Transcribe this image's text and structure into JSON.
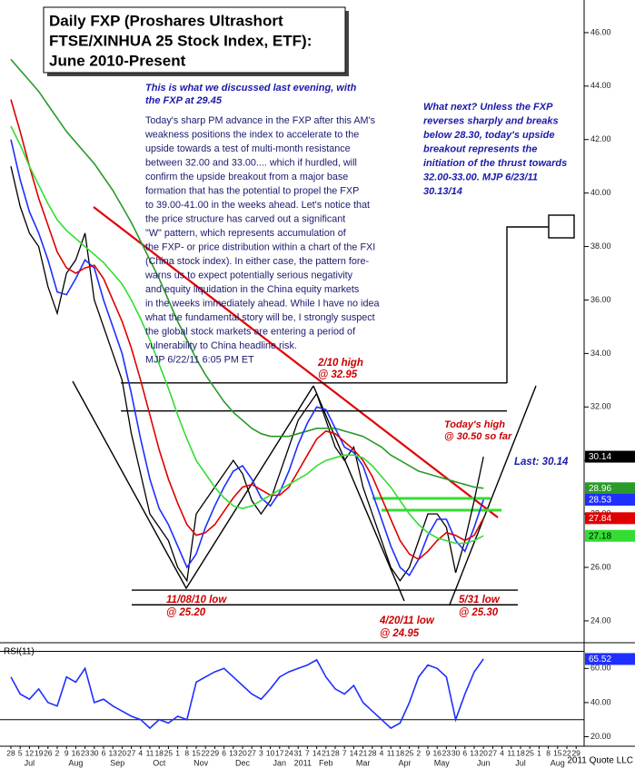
{
  "chart_data": [
    {
      "type": "line",
      "title": [
        "Daily FXP (Proshares Ultrashort",
        "FTSE/XINHUA 25 Stock Index, ETF):",
        "June 2010-Present"
      ],
      "categories": [
        "28",
        "5",
        "12",
        "19",
        "26",
        "2",
        "9",
        "16",
        "23",
        "30",
        "6",
        "13",
        "20",
        "27",
        "4",
        "11",
        "18",
        "25",
        "1",
        "8",
        "15",
        "22",
        "29",
        "6",
        "13",
        "20",
        "27",
        "3",
        "10",
        "17",
        "24",
        "31",
        "7",
        "14",
        "21",
        "28",
        "7",
        "14",
        "21",
        "28",
        "4",
        "11",
        "18",
        "25",
        "2",
        "9",
        "16",
        "23",
        "30",
        "6",
        "13",
        "20",
        "27",
        "4",
        "11",
        "18",
        "25",
        "1",
        "8",
        "15",
        "22",
        "29"
      ],
      "x_groups": [
        "Jul",
        "Aug",
        "Sep",
        "Oct",
        "Nov",
        "Dec",
        "Jan",
        "2011",
        "Feb",
        "Mar",
        "Apr",
        "May",
        "Jun",
        "Jul",
        "Aug"
      ],
      "ylim": [
        23.25,
        47.22
      ],
      "yticks": [
        {
          "value": 24,
          "label": "24.00"
        },
        {
          "value": 26,
          "label": "26.00"
        },
        {
          "value": 28,
          "label": "28.00"
        },
        {
          "value": 30,
          "label": "30.00"
        },
        {
          "value": 32,
          "label": "32.00"
        },
        {
          "value": 34,
          "label": "34.00"
        },
        {
          "value": 36,
          "label": "36.00"
        },
        {
          "value": 38,
          "label": "38.00"
        },
        {
          "value": 40,
          "label": "40.00"
        },
        {
          "value": 42,
          "label": "42.00"
        },
        {
          "value": 44,
          "label": "44.00"
        },
        {
          "value": 46,
          "label": "46.00"
        }
      ],
      "series": [
        {
          "color": "#000000",
          "values": [
            41.0,
            39.5,
            38.5,
            38.0,
            36.5,
            35.5,
            37.0,
            37.5,
            38.5,
            36.0,
            35.0,
            34.0,
            33.0,
            31.0,
            29.5,
            28.0,
            27.5,
            27.0,
            26.0,
            25.5,
            28.0,
            28.5,
            29.0,
            29.5,
            30.0,
            29.5,
            28.5,
            28.0,
            28.5,
            29.5,
            30.5,
            31.5,
            32.0,
            32.5,
            31.5,
            30.5,
            30.0,
            30.5,
            29.0,
            28.0,
            27.0,
            26.0,
            25.5,
            26.0,
            27.0,
            28.0,
            28.0,
            27.5,
            25.8,
            27.0,
            28.5,
            30.14,
            null,
            null,
            null,
            null,
            null,
            null,
            null,
            null,
            null,
            null
          ]
        },
        {
          "color": "#2a9a2a",
          "values": [
            45.0,
            44.6,
            44.2,
            43.8,
            43.3,
            42.8,
            42.3,
            41.9,
            41.5,
            41.1,
            40.6,
            40.1,
            39.5,
            38.9,
            38.2,
            37.5,
            36.8,
            36.0,
            35.2,
            34.5,
            33.8,
            33.2,
            32.7,
            32.2,
            31.8,
            31.5,
            31.2,
            31.0,
            30.9,
            30.9,
            30.9,
            31.0,
            31.1,
            31.2,
            31.2,
            31.2,
            31.1,
            31.0,
            30.9,
            30.7,
            30.5,
            30.2,
            30.0,
            29.8,
            29.6,
            29.5,
            29.4,
            29.3,
            29.2,
            29.1,
            29.0,
            28.96,
            null,
            null,
            null,
            null,
            null,
            null,
            null,
            null,
            null,
            null
          ]
        },
        {
          "color": "#1f2fff",
          "values": [
            42.0,
            40.5,
            39.3,
            38.5,
            37.5,
            36.3,
            36.2,
            36.8,
            37.5,
            37.2,
            36.0,
            35.0,
            34.0,
            32.5,
            30.8,
            29.3,
            28.2,
            27.6,
            26.8,
            26.0,
            26.5,
            27.5,
            28.3,
            29.0,
            29.6,
            29.8,
            29.3,
            28.6,
            28.3,
            28.8,
            29.6,
            30.6,
            31.4,
            32.0,
            31.9,
            31.2,
            30.5,
            30.3,
            29.8,
            28.8,
            27.8,
            26.8,
            26.0,
            25.7,
            26.3,
            27.2,
            27.8,
            27.8,
            27.0,
            26.6,
            27.5,
            28.53,
            null,
            null,
            null,
            null,
            null,
            null,
            null,
            null,
            null,
            null
          ]
        },
        {
          "color": "#e00000",
          "values": [
            43.5,
            42.3,
            41.0,
            39.8,
            38.8,
            37.8,
            37.2,
            37.0,
            37.2,
            37.3,
            36.8,
            36.0,
            35.2,
            34.2,
            33.0,
            31.7,
            30.4,
            29.3,
            28.4,
            27.6,
            27.2,
            27.3,
            27.6,
            28.1,
            28.6,
            29.0,
            29.1,
            28.9,
            28.7,
            28.7,
            29.0,
            29.6,
            30.2,
            30.8,
            31.1,
            31.0,
            30.7,
            30.4,
            30.0,
            29.4,
            28.6,
            27.8,
            27.0,
            26.5,
            26.3,
            26.6,
            27.0,
            27.3,
            27.2,
            27.0,
            27.2,
            27.84,
            null,
            null,
            null,
            null,
            null,
            null,
            null,
            null,
            null,
            null
          ]
        },
        {
          "color": "#33dd33",
          "values": [
            42.5,
            41.8,
            41.0,
            40.3,
            39.6,
            39.0,
            38.6,
            38.3,
            38.0,
            37.7,
            37.4,
            37.0,
            36.6,
            36.0,
            35.3,
            34.5,
            33.6,
            32.7,
            31.7,
            30.8,
            30.0,
            29.5,
            29.0,
            28.6,
            28.3,
            28.2,
            28.3,
            28.5,
            28.7,
            28.9,
            29.1,
            29.3,
            29.5,
            29.8,
            30.0,
            30.1,
            30.2,
            30.2,
            30.1,
            29.8,
            29.4,
            29.0,
            28.5,
            28.0,
            27.6,
            27.3,
            27.1,
            27.0,
            26.9,
            26.9,
            27.0,
            27.18,
            null,
            null,
            null,
            null,
            null,
            null,
            null,
            null,
            null,
            null
          ]
        }
      ],
      "levels": [
        32.9,
        31.85,
        25.15,
        24.6
      ],
      "annotations": [
        {
          "color": "#cc0000",
          "lines": [
            "2/10 high",
            "@ 32.95"
          ]
        },
        {
          "color": "#cc0000",
          "lines": [
            "Today's high",
            "@ 30.50 so far"
          ]
        },
        {
          "color": "#1a1aaa",
          "lines": [
            "Last: 30.14"
          ]
        },
        {
          "color": "#cc0000",
          "lines": [
            "11/08/10 low",
            "@ 25.20"
          ]
        },
        {
          "color": "#cc0000",
          "lines": [
            "4/20/11 low",
            "@ 24.95"
          ]
        },
        {
          "color": "#cc0000",
          "lines": [
            "5/31 low",
            "@ 25.30"
          ]
        },
        {
          "color": "#1a1aaa",
          "lines": [
            "This is what we discussed last evening, with",
            "the FXP at 29.45"
          ]
        },
        {
          "color": "#1a1a6e",
          "lines": [
            "Today's sharp PM advance in the FXP after this AM's",
            "weakness positions the index to accelerate to the",
            "upside towards a test of multi-month resistance",
            "between 32.00 and 33.00.... which if hurdled, will",
            "confirm the upside breakout from a major base",
            "formation that has the potential to propel the FXP",
            "to 39.00-41.00 in the weeks ahead. Let's notice that",
            "the price structure has carved out a significant",
            "\"W\" pattern, which represents accumulation of",
            "the FXP- or price distribution within a chart of the FXI",
            "(China stock index). In either case, the pattern fore-",
            "warns us to expect  potentially serious negativity",
            "and equity liquidation in the China equity markets",
            "in the weeks immediately ahead. While I have no idea",
            "what the fundamental story will be, I strongly suspect",
            "the global stock markets are entering a period of",
            "vulnerability to China headline risk.",
            "MJP  6/22/11  6:05 PM ET"
          ]
        },
        {
          "color": "#1a1aaa",
          "lines": [
            "What next? Unless the FXP",
            "reverses sharply and breaks",
            "below 28.30, today's upside",
            "breakout represents the",
            "initiation of the thrust towards",
            "32.00-33.00.  MJP  6/23/11",
            "30.13/14"
          ]
        }
      ]
    },
    {
      "type": "line",
      "label": "RSI(11)",
      "ylim": [
        15.5,
        74
      ],
      "yticks": [
        {
          "value": 20,
          "label": "20.00"
        },
        {
          "value": 40,
          "label": "40.00"
        },
        {
          "value": 60,
          "label": "60.00"
        }
      ],
      "levels": [
        30,
        70
      ],
      "series": [
        {
          "color": "#1f2fff",
          "values": [
            55,
            45,
            42,
            48,
            40,
            38,
            55,
            52,
            60,
            40,
            42,
            38,
            35,
            32,
            30,
            25,
            30,
            28,
            32,
            30,
            52,
            55,
            58,
            60,
            55,
            50,
            45,
            42,
            48,
            55,
            58,
            60,
            62,
            65,
            55,
            48,
            45,
            50,
            40,
            35,
            30,
            25,
            28,
            40,
            55,
            62,
            60,
            55,
            30,
            45,
            58,
            65.52,
            null,
            null,
            null,
            null,
            null,
            null,
            null,
            null,
            null,
            null
          ]
        }
      ],
      "source": "2011 Quote LLC"
    }
  ]
}
